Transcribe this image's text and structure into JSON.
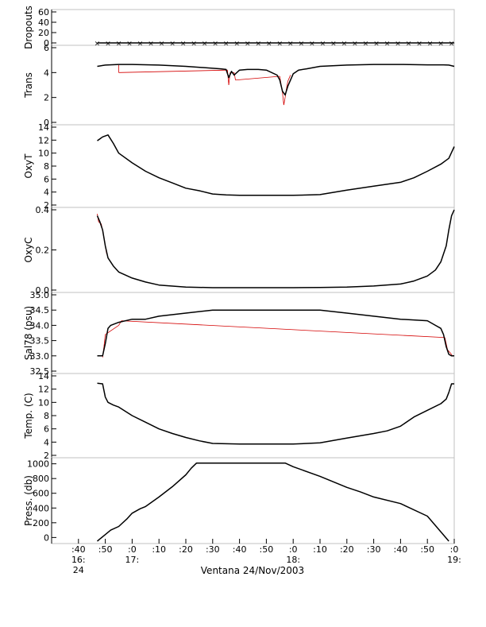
{
  "chart_data": {
    "type": "line",
    "title": "",
    "xlabel": "Ventana 24/Nov/2003",
    "x_unit": "minutes after 16:30",
    "xlim": [
      0,
      150
    ],
    "x_ticks": [
      {
        "v": 10,
        "top": ":40",
        "bottom": "16:",
        "bottom2": "24"
      },
      {
        "v": 20,
        "top": ":50",
        "bottom": "",
        "bottom2": ""
      },
      {
        "v": 30,
        "top": ":0",
        "bottom": "17:",
        "bottom2": ""
      },
      {
        "v": 40,
        "top": ":10",
        "bottom": "",
        "bottom2": ""
      },
      {
        "v": 50,
        "top": ":20",
        "bottom": "",
        "bottom2": ""
      },
      {
        "v": 60,
        "top": ":30",
        "bottom": "",
        "bottom2": ""
      },
      {
        "v": 70,
        "top": ":40",
        "bottom": "",
        "bottom2": ""
      },
      {
        "v": 80,
        "top": ":50",
        "bottom": "",
        "bottom2": ""
      },
      {
        "v": 90,
        "top": ":0",
        "bottom": "18:",
        "bottom2": ""
      },
      {
        "v": 100,
        "top": ":10",
        "bottom": "",
        "bottom2": ""
      },
      {
        "v": 110,
        "top": ":20",
        "bottom": "",
        "bottom2": ""
      },
      {
        "v": 120,
        "top": ":30",
        "bottom": "",
        "bottom2": ""
      },
      {
        "v": 130,
        "top": ":40",
        "bottom": "",
        "bottom2": ""
      },
      {
        "v": 140,
        "top": ":50",
        "bottom": "",
        "bottom2": ""
      },
      {
        "v": 150,
        "top": ":0",
        "bottom": "19:",
        "bottom2": ""
      }
    ],
    "colors": {
      "main": "#000000",
      "raw": "#d40000",
      "axis": "#000000",
      "box": "#c0c0c0"
    },
    "panels": [
      {
        "ylabel": "Dropouts",
        "ylim": [
          0,
          60
        ],
        "yticks": [
          {
            "v": 0,
            "t": "0"
          },
          {
            "v": 20,
            "t": "20"
          },
          {
            "v": 40,
            "t": "40"
          },
          {
            "v": 60,
            "t": "60"
          }
        ],
        "x": [
          17,
          150
        ],
        "y": [
          0,
          0
        ],
        "markers": {
          "from": 17,
          "to": 150,
          "step": 4,
          "y": 0
        }
      },
      {
        "ylabel": "Trans",
        "ylim": [
          0,
          6
        ],
        "yticks": [
          {
            "v": 0,
            "t": "0"
          },
          {
            "v": 2,
            "t": "2"
          },
          {
            "v": 4,
            "t": "4"
          },
          {
            "v": 6,
            "t": "6"
          }
        ],
        "x": [
          17,
          20,
          25,
          30,
          40,
          50,
          60,
          63,
          65,
          66,
          67,
          68,
          70,
          73,
          77,
          80,
          84,
          85,
          86,
          87,
          88,
          90,
          92,
          95,
          100,
          110,
          120,
          130,
          140,
          146,
          148,
          150
        ],
        "y": [
          4.5,
          4.6,
          4.65,
          4.65,
          4.6,
          4.5,
          4.35,
          4.3,
          4.25,
          3.6,
          4.1,
          3.8,
          4.2,
          4.25,
          4.25,
          4.2,
          3.8,
          3.4,
          2.5,
          2.2,
          2.9,
          3.9,
          4.2,
          4.3,
          4.5,
          4.6,
          4.65,
          4.65,
          4.62,
          4.62,
          4.6,
          4.5
        ],
        "raw_x": [
          25,
          25,
          65.5,
          66,
          66.5,
          68,
          68.5,
          85,
          86,
          86.5,
          87,
          87.5,
          88,
          89
        ],
        "raw_y": [
          4.6,
          4.0,
          4.2,
          3.0,
          4.0,
          4.0,
          3.4,
          3.7,
          2.4,
          1.4,
          2.0,
          2.7,
          3.3,
          3.8
        ]
      },
      {
        "ylabel": "OxyT",
        "ylim": [
          2,
          14
        ],
        "yticks": [
          {
            "v": 2,
            "t": "2"
          },
          {
            "v": 4,
            "t": "4"
          },
          {
            "v": 6,
            "t": "6"
          },
          {
            "v": 8,
            "t": "8"
          },
          {
            "v": 10,
            "t": "10"
          },
          {
            "v": 12,
            "t": "12"
          },
          {
            "v": 14,
            "t": "14"
          }
        ],
        "x": [
          17,
          19,
          21,
          23,
          25,
          30,
          35,
          40,
          45,
          50,
          55,
          60,
          65,
          70,
          80,
          90,
          100,
          110,
          120,
          130,
          135,
          140,
          145,
          148,
          150
        ],
        "y": [
          11.9,
          12.5,
          12.8,
          11.5,
          10.0,
          8.5,
          7.2,
          6.2,
          5.4,
          4.6,
          4.2,
          3.7,
          3.55,
          3.5,
          3.5,
          3.5,
          3.6,
          4.3,
          4.9,
          5.5,
          6.2,
          7.2,
          8.3,
          9.2,
          11.0
        ]
      },
      {
        "ylabel": "OxyC",
        "ylim": [
          0.0,
          0.4
        ],
        "yticks": [
          {
            "v": 0.0,
            "t": "0.0"
          },
          {
            "v": 0.2,
            "t": "0.2"
          },
          {
            "v": 0.4,
            "t": "0.4"
          }
        ],
        "x": [
          17,
          18,
          19,
          20,
          21,
          23,
          25,
          30,
          35,
          40,
          50,
          60,
          70,
          80,
          90,
          100,
          110,
          120,
          130,
          135,
          140,
          143,
          145,
          147,
          148,
          149,
          150
        ],
        "y": [
          0.37,
          0.34,
          0.3,
          0.22,
          0.16,
          0.12,
          0.09,
          0.06,
          0.04,
          0.025,
          0.015,
          0.012,
          0.012,
          0.012,
          0.012,
          0.013,
          0.015,
          0.02,
          0.03,
          0.045,
          0.07,
          0.1,
          0.14,
          0.22,
          0.3,
          0.37,
          0.4
        ],
        "raw_x": [
          17,
          17.5,
          18.5,
          19.5,
          20.5
        ],
        "raw_y": [
          0.38,
          0.34,
          0.33,
          0.26,
          0.18
        ]
      },
      {
        "ylabel": "Sal78 (psu)",
        "ylim": [
          32.5,
          35.0
        ],
        "yticks": [
          {
            "v": 32.5,
            "t": "32.5"
          },
          {
            "v": 33.0,
            "t": "33.0"
          },
          {
            "v": 33.5,
            "t": "33.5"
          },
          {
            "v": 34.0,
            "t": "34.0"
          },
          {
            "v": 34.5,
            "t": "34.5"
          },
          {
            "v": 35.0,
            "t": "35.0"
          }
        ],
        "x": [
          17,
          19,
          20,
          21,
          22,
          25,
          30,
          35,
          40,
          50,
          60,
          70,
          80,
          90,
          100,
          110,
          120,
          130,
          140,
          143,
          145,
          146,
          147,
          148,
          149,
          150
        ],
        "y": [
          33.0,
          33.0,
          33.4,
          33.9,
          34.0,
          34.1,
          34.2,
          34.2,
          34.3,
          34.4,
          34.5,
          34.5,
          34.5,
          34.5,
          34.5,
          34.4,
          34.3,
          34.2,
          34.15,
          34.0,
          33.9,
          33.7,
          33.3,
          33.05,
          33.0,
          33.0
        ],
        "raw_x": [
          19,
          19.5,
          20,
          25,
          26,
          146.5,
          147.5,
          148.5,
          149.5
        ],
        "raw_y": [
          32.95,
          33.3,
          33.7,
          34.0,
          34.15,
          33.6,
          33.2,
          33.1,
          32.98
        ]
      },
      {
        "ylabel": "Temp. (C)",
        "ylim": [
          2,
          14
        ],
        "yticks": [
          {
            "v": 2,
            "t": "2"
          },
          {
            "v": 4,
            "t": "4"
          },
          {
            "v": 6,
            "t": "6"
          },
          {
            "v": 8,
            "t": "8"
          },
          {
            "v": 10,
            "t": "10"
          },
          {
            "v": 12,
            "t": "12"
          },
          {
            "v": 14,
            "t": "14"
          }
        ],
        "x": [
          17,
          19,
          20,
          21,
          23,
          25,
          30,
          35,
          40,
          45,
          50,
          55,
          60,
          70,
          80,
          90,
          100,
          110,
          120,
          125,
          130,
          135,
          140,
          145,
          147,
          148,
          149,
          150
        ],
        "y": [
          12.9,
          12.8,
          10.8,
          10.0,
          9.6,
          9.3,
          8.0,
          7.0,
          6.0,
          5.3,
          4.7,
          4.2,
          3.8,
          3.7,
          3.7,
          3.7,
          3.9,
          4.6,
          5.3,
          5.7,
          6.4,
          7.8,
          8.8,
          9.8,
          10.5,
          11.5,
          12.8,
          12.8
        ]
      },
      {
        "ylabel": "Press. (db)",
        "ylim": [
          -50,
          1050
        ],
        "yticks": [
          {
            "v": 0,
            "t": "0"
          },
          {
            "v": 200,
            "t": "200"
          },
          {
            "v": 400,
            "t": "400"
          },
          {
            "v": 600,
            "t": "600"
          },
          {
            "v": 800,
            "t": "800"
          },
          {
            "v": 1000,
            "t": "1000"
          }
        ],
        "x": [
          17,
          18,
          20,
          22,
          25,
          28,
          30,
          33,
          35,
          40,
          45,
          50,
          52,
          54,
          60,
          70,
          80,
          85,
          87,
          90,
          100,
          110,
          115,
          120,
          130,
          140,
          148
        ],
        "y": [
          -50,
          -20,
          40,
          100,
          150,
          250,
          330,
          390,
          420,
          550,
          690,
          850,
          940,
          1010,
          1010,
          1010,
          1010,
          1010,
          1010,
          960,
          830,
          680,
          620,
          550,
          460,
          290,
          -50
        ]
      }
    ]
  }
}
